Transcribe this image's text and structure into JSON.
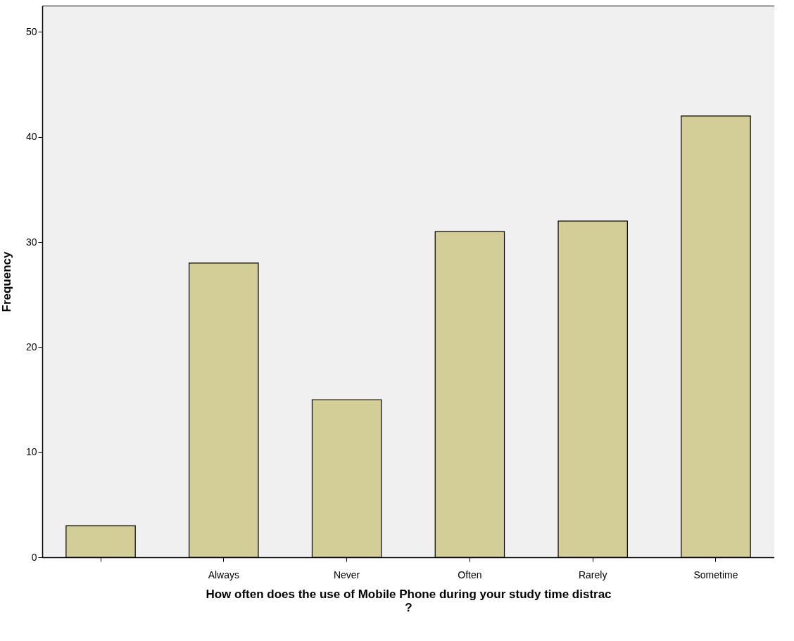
{
  "chart_data": {
    "type": "bar",
    "categories": [
      null,
      "Always",
      "Never",
      "Often",
      "Rarely",
      "Sometime"
    ],
    "values": [
      3,
      28,
      15,
      31,
      32,
      42
    ],
    "color": "#d3ce97",
    "xlabel": "How often does the use of Mobile Phone during your study time distrac\n?",
    "ylabel": "Frequency",
    "ylim": [
      0,
      52.5
    ],
    "yticks": [
      0,
      10,
      20,
      30,
      40,
      50
    ],
    "grid": false
  }
}
